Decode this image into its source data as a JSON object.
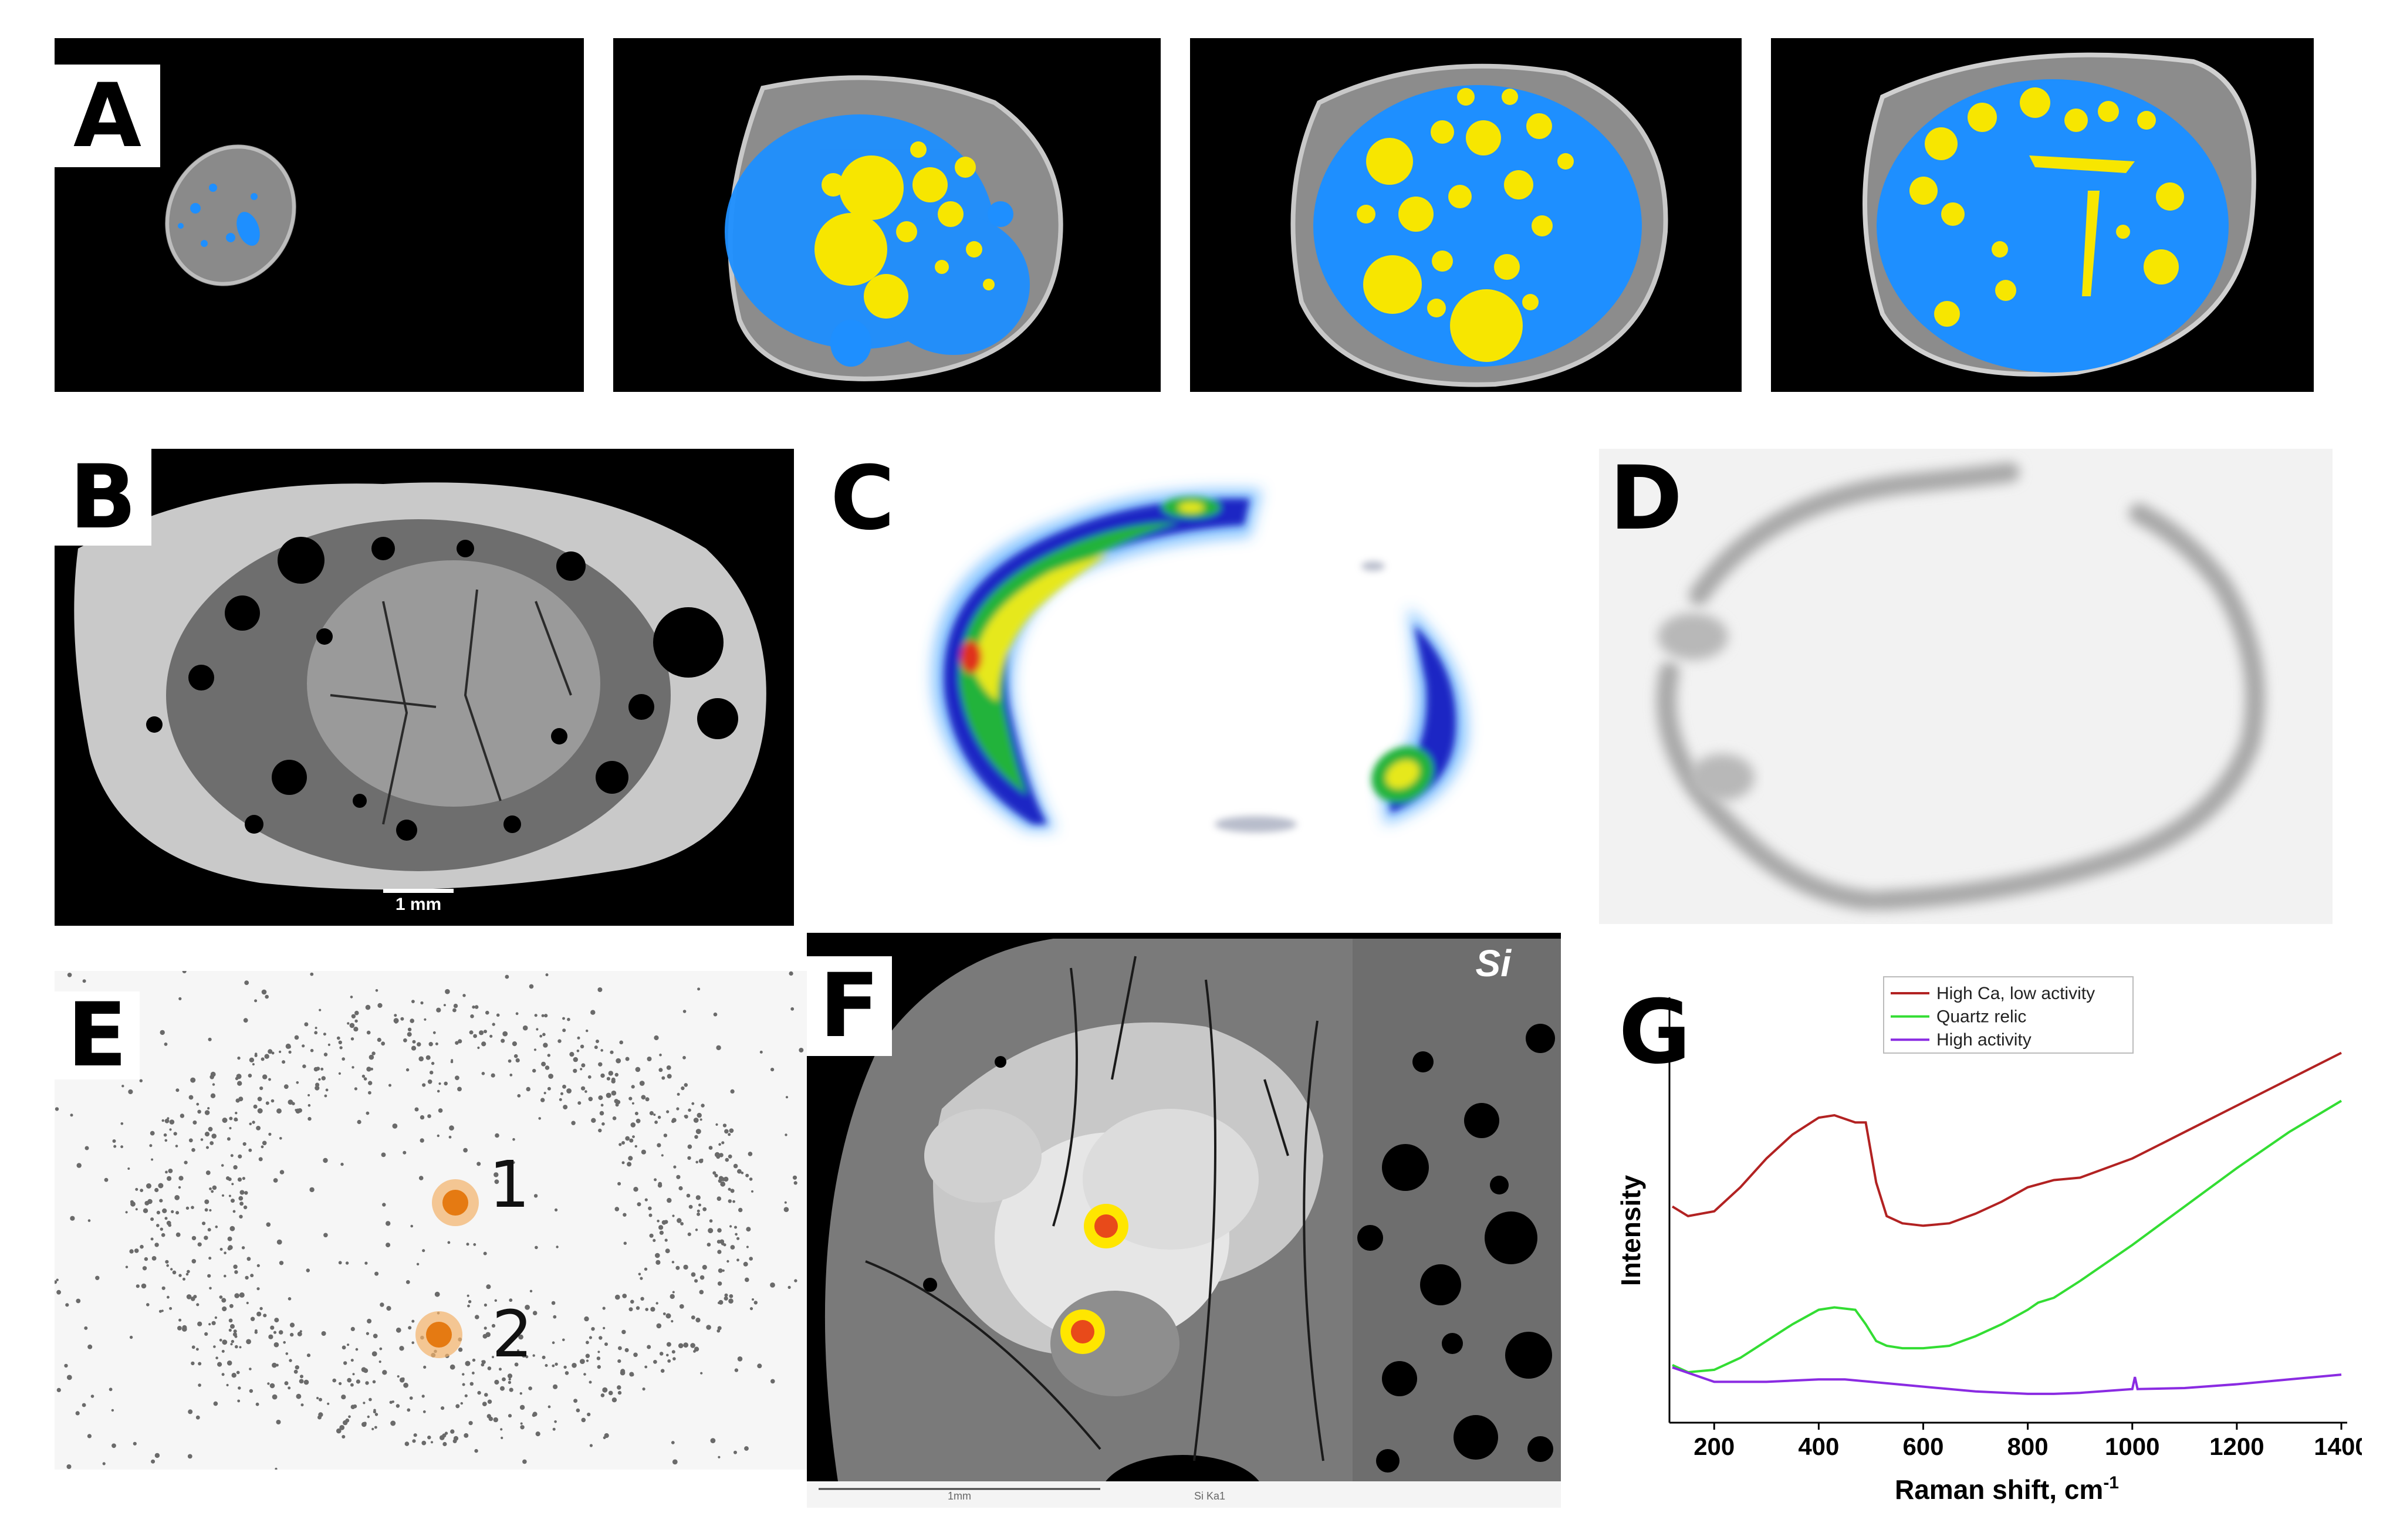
{
  "panels": {
    "A": {
      "label": "A"
    },
    "B": {
      "label": "B",
      "scalebar": "1 mm"
    },
    "C": {
      "label": "C"
    },
    "D": {
      "label": "D"
    },
    "E": {
      "label": "E",
      "points": [
        "1",
        "2"
      ]
    },
    "F": {
      "label": "F",
      "element": "Si",
      "footer_left": "1mm",
      "footer_right": "Si Ka1"
    },
    "G": {
      "label": "G"
    }
  },
  "colors": {
    "pore_yellow": "#f7e600",
    "pore_blue": "#1e8fff",
    "matrix_grey": "#8a8a8a",
    "marker_orange": "#f08a1c",
    "marker_red": "#e84a1a",
    "marker_ring_yellow": "#ffe600"
  },
  "chart_data": {
    "type": "line",
    "title": "",
    "xlabel": "Raman shift, cm",
    "xlabel_superscript": "-1",
    "ylabel": "Intensity",
    "xlim": [
      120,
      1400
    ],
    "xticks": [
      200,
      400,
      600,
      800,
      1000,
      1200,
      1400
    ],
    "y_tick_labels": false,
    "legend_position": "top-center",
    "series": [
      {
        "name": "High Ca, low activity",
        "color": "#b22222",
        "x": [
          120,
          150,
          200,
          250,
          300,
          350,
          400,
          430,
          470,
          490,
          510,
          530,
          560,
          600,
          650,
          700,
          750,
          800,
          850,
          900,
          1000,
          1100,
          1200,
          1300,
          1400
        ],
        "y": [
          0.8,
          0.78,
          0.79,
          0.84,
          0.9,
          0.95,
          0.985,
          0.99,
          0.975,
          0.975,
          0.85,
          0.78,
          0.765,
          0.76,
          0.765,
          0.785,
          0.81,
          0.84,
          0.855,
          0.86,
          0.9,
          0.955,
          1.01,
          1.065,
          1.12
        ]
      },
      {
        "name": "Quartz relic",
        "color": "#33dd33",
        "x": [
          120,
          150,
          200,
          250,
          300,
          350,
          400,
          430,
          470,
          490,
          510,
          530,
          560,
          600,
          650,
          700,
          750,
          800,
          820,
          850,
          900,
          1000,
          1100,
          1200,
          1300,
          1400
        ],
        "y": [
          0.47,
          0.455,
          0.46,
          0.485,
          0.52,
          0.555,
          0.585,
          0.59,
          0.585,
          0.555,
          0.52,
          0.51,
          0.505,
          0.505,
          0.51,
          0.53,
          0.555,
          0.585,
          0.6,
          0.61,
          0.645,
          0.72,
          0.8,
          0.88,
          0.955,
          1.02
        ]
      },
      {
        "name": "High activity",
        "color": "#8a2be2",
        "x": [
          120,
          200,
          300,
          400,
          450,
          500,
          600,
          700,
          800,
          850,
          900,
          1000,
          1005,
          1010,
          1100,
          1200,
          1300,
          1400
        ],
        "y": [
          0.465,
          0.435,
          0.435,
          0.44,
          0.44,
          0.435,
          0.425,
          0.415,
          0.41,
          0.41,
          0.412,
          0.42,
          0.445,
          0.42,
          0.422,
          0.43,
          0.44,
          0.45
        ]
      }
    ]
  }
}
